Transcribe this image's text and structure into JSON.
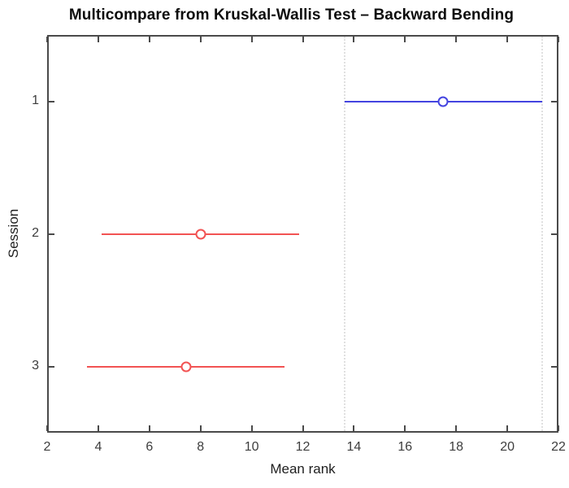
{
  "chart_data": {
    "type": "scatter",
    "subtype": "multcompare-horizontal-intervals",
    "title": "Multicompare from Kruskal-Wallis Test – Backward Bending",
    "xlabel": "Mean rank",
    "ylabel": "Session",
    "xlim": [
      2,
      22
    ],
    "x_ticks": [
      2,
      4,
      6,
      8,
      10,
      12,
      14,
      16,
      18,
      20,
      22
    ],
    "ylim": [
      0.5,
      3.5
    ],
    "y_axis_inverted": true,
    "y_tick_labels": [
      "1",
      "2",
      "3"
    ],
    "grid": "off",
    "legend": "none",
    "marker": "open-circle",
    "series": [
      {
        "name": "Session 1",
        "session": 1,
        "mean_rank": 17.5,
        "interval": [
          13.64,
          21.36
        ],
        "color": "#4444e0",
        "role": "selected-group"
      },
      {
        "name": "Session 2",
        "session": 2,
        "mean_rank": 8.0,
        "interval": [
          4.14,
          11.86
        ],
        "color": "#f25353",
        "role": "significantly-different"
      },
      {
        "name": "Session 3",
        "session": 3,
        "mean_rank": 7.43,
        "interval": [
          3.57,
          11.29
        ],
        "color": "#f25353",
        "role": "significantly-different"
      }
    ],
    "reference_lines_x": [
      13.64,
      21.36
    ],
    "colors": {
      "selected": "#4444e0",
      "different": "#f25353",
      "axis": "#4a4a4a",
      "tick_labels": "#3d3d3d",
      "reference": "#e0e0e0",
      "background": "#ffffff"
    }
  }
}
